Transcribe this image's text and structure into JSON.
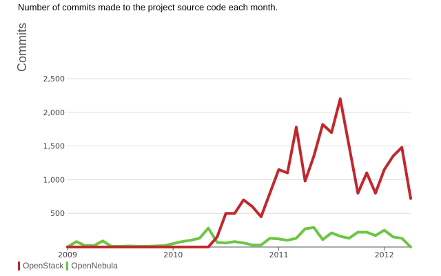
{
  "caption": "Number of commits made to the project source code each month.",
  "chart_data": {
    "type": "line",
    "ylabel": "Commits",
    "xlabel": "",
    "ylim": [
      0,
      2500
    ],
    "yticks": [
      {
        "value": 500,
        "label": "500"
      },
      {
        "value": 1000,
        "label": "1,000"
      },
      {
        "value": 1500,
        "label": "1,500"
      },
      {
        "value": 2000,
        "label": "2,000"
      },
      {
        "value": 2500,
        "label": "2,500"
      }
    ],
    "xlim": [
      "2009-01",
      "2012-04"
    ],
    "xticks": [
      {
        "value": "2009-01",
        "label": "2009"
      },
      {
        "value": "2010-01",
        "label": "2010"
      },
      {
        "value": "2011-01",
        "label": "2011"
      },
      {
        "value": "2012-01",
        "label": "2012"
      }
    ],
    "grid": true,
    "legend": "bottom-left",
    "x": [
      "2009-01",
      "2009-02",
      "2009-03",
      "2009-04",
      "2009-05",
      "2009-06",
      "2009-07",
      "2009-08",
      "2009-09",
      "2009-10",
      "2009-11",
      "2009-12",
      "2010-01",
      "2010-02",
      "2010-03",
      "2010-04",
      "2010-05",
      "2010-06",
      "2010-07",
      "2010-08",
      "2010-09",
      "2010-10",
      "2010-11",
      "2010-12",
      "2011-01",
      "2011-02",
      "2011-03",
      "2011-04",
      "2011-05",
      "2011-06",
      "2011-07",
      "2011-08",
      "2011-09",
      "2011-10",
      "2011-11",
      "2011-12",
      "2012-01",
      "2012-02",
      "2012-03",
      "2012-04"
    ],
    "series": [
      {
        "name": "OpenStack",
        "color": "#c0282d",
        "values": [
          0,
          0,
          0,
          0,
          0,
          0,
          0,
          0,
          0,
          0,
          0,
          0,
          0,
          0,
          0,
          0,
          0,
          150,
          500,
          500,
          700,
          600,
          450,
          800,
          1150,
          1100,
          1780,
          980,
          1350,
          1820,
          1700,
          2200,
          1500,
          800,
          1100,
          800,
          1150,
          1350,
          1480,
          720
        ]
      },
      {
        "name": "OpenNebula",
        "color": "#6cc644",
        "values": [
          0,
          80,
          20,
          20,
          90,
          10,
          10,
          15,
          10,
          10,
          15,
          20,
          50,
          80,
          100,
          130,
          280,
          70,
          60,
          80,
          60,
          30,
          30,
          130,
          120,
          100,
          130,
          270,
          290,
          110,
          210,
          160,
          130,
          220,
          220,
          170,
          250,
          150,
          130,
          0
        ]
      }
    ]
  }
}
